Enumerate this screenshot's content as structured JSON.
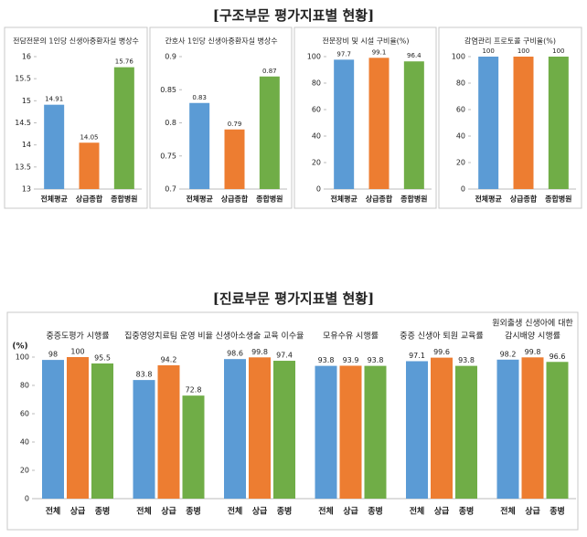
{
  "headings": [
    "[구조부문 평가지표별 현황]",
    "[진료부문 평가지표별 현황]"
  ],
  "chart_data": [
    {
      "type": "bar",
      "title": "전담전문의 1인당 신생아중환자실 병상수",
      "categories": [
        "전체평균",
        "상급종합",
        "종합병원"
      ],
      "values": [
        14.91,
        14.05,
        15.76
      ],
      "colors": [
        "#5b9bd5",
        "#ed7d31",
        "#70ad47"
      ],
      "ylim": [
        13,
        16
      ],
      "yticks": [
        13,
        13.5,
        14,
        14.5,
        15,
        15.5,
        16
      ]
    },
    {
      "type": "bar",
      "title": "간호사 1인당 신생아중환자실 병상수",
      "categories": [
        "전체평균",
        "상급종합",
        "종합병원"
      ],
      "values": [
        0.83,
        0.79,
        0.87
      ],
      "colors": [
        "#5b9bd5",
        "#ed7d31",
        "#70ad47"
      ],
      "ylim": [
        0.7,
        0.9
      ],
      "yticks": [
        0.7,
        0.75,
        0.8,
        0.85,
        0.9
      ]
    },
    {
      "type": "bar",
      "title": "전문장비 및 시설 구비율(%)",
      "categories": [
        "전체평균",
        "상급종합",
        "종합병원"
      ],
      "values": [
        97.7,
        99.1,
        96.4
      ],
      "colors": [
        "#5b9bd5",
        "#ed7d31",
        "#70ad47"
      ],
      "ylim": [
        0,
        100
      ],
      "yticks": [
        0,
        20,
        40,
        60,
        80,
        100
      ]
    },
    {
      "type": "bar",
      "title": "감염관리 프로토콜 구비율(%)",
      "categories": [
        "전체평균",
        "상급종합",
        "종합병원"
      ],
      "values": [
        100,
        100,
        100
      ],
      "colors": [
        "#5b9bd5",
        "#ed7d31",
        "#70ad47"
      ],
      "ylim": [
        0,
        100
      ],
      "yticks": [
        0,
        20,
        40,
        60,
        80,
        100
      ]
    },
    {
      "type": "grouped_panels",
      "ylabel": "(%)",
      "ylim": [
        0,
        100
      ],
      "yticks": [
        0,
        20,
        40,
        60,
        80,
        100
      ],
      "colors": [
        "#5b9bd5",
        "#ed7d31",
        "#70ad47"
      ],
      "panels": [
        {
          "title": "중증도평가 시행률",
          "categories": [
            "전체",
            "상급",
            "종병"
          ],
          "values": [
            98,
            100,
            95.5
          ]
        },
        {
          "title": "집중영양치료팀 운영 비율",
          "categories": [
            "전체",
            "상급",
            "종병"
          ],
          "values": [
            83.8,
            94.2,
            72.8
          ]
        },
        {
          "title": "신생아소생술 교육 이수율",
          "categories": [
            "전체",
            "상급",
            "종병"
          ],
          "values": [
            98.6,
            99.8,
            97.4
          ]
        },
        {
          "title": "모유수유 시행률",
          "categories": [
            "전체",
            "상급",
            "종병"
          ],
          "values": [
            93.8,
            93.9,
            93.8
          ]
        },
        {
          "title": "중증 신생아 퇴원 교육률",
          "categories": [
            "전체",
            "상급",
            "종병"
          ],
          "values": [
            97.1,
            99.6,
            93.8
          ]
        },
        {
          "title": [
            "원외출생 신생아에 대한",
            "감시배양 시행률"
          ],
          "categories": [
            "전체",
            "상급",
            "종병"
          ],
          "values": [
            98.2,
            99.8,
            96.6
          ]
        }
      ]
    }
  ]
}
